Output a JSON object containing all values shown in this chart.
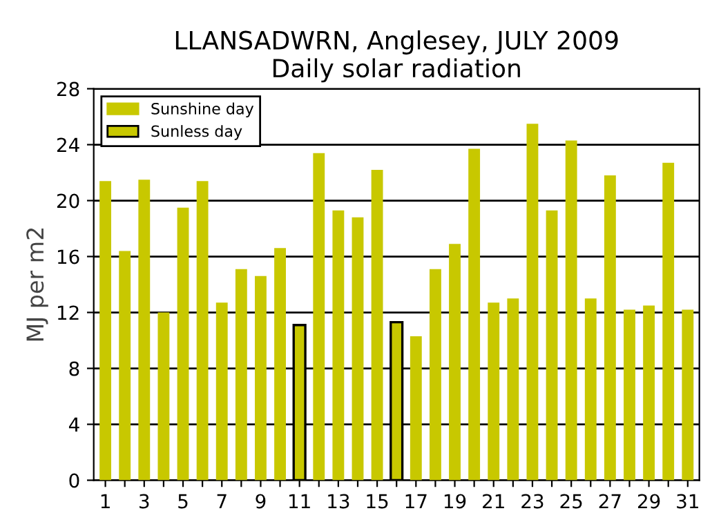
{
  "chart_data": {
    "type": "bar",
    "title": "LLANSADWRN, Anglesey, JULY 2009\nDaily solar radiation",
    "ylabel": "MJ per m2",
    "categories": [
      "1",
      null,
      "3",
      null,
      "5",
      null,
      "7",
      null,
      "9",
      null,
      "11",
      null,
      "13",
      null,
      "15",
      null,
      "17",
      null,
      "19",
      null,
      "21",
      null,
      "23",
      null,
      "25",
      null,
      "27",
      null,
      "29",
      null,
      "31"
    ],
    "series": [
      {
        "name": "Sunshine day",
        "color": "#c8c800",
        "values": [
          21.4,
          16.4,
          21.5,
          12.0,
          19.5,
          21.4,
          12.7,
          15.1,
          14.6,
          16.6,
          null,
          23.4,
          19.3,
          18.8,
          22.2,
          null,
          10.3,
          15.1,
          16.9,
          23.7,
          12.7,
          13.0,
          25.5,
          19.3,
          24.3,
          13.0,
          21.8,
          12.2,
          12.5,
          22.7,
          12.2
        ]
      },
      {
        "name": "Sunless day",
        "color": "#c8c800",
        "values": [
          null,
          null,
          null,
          null,
          null,
          null,
          null,
          null,
          null,
          null,
          11.1,
          null,
          null,
          null,
          null,
          11.3,
          null,
          null,
          null,
          null,
          null,
          null,
          null,
          null,
          null,
          null,
          null,
          null,
          null,
          null,
          null
        ]
      }
    ],
    "ylim": [
      0,
      28
    ],
    "yticks": [
      0,
      4,
      8,
      12,
      16,
      20,
      24,
      28
    ],
    "grid": "y",
    "legend": "top left"
  }
}
